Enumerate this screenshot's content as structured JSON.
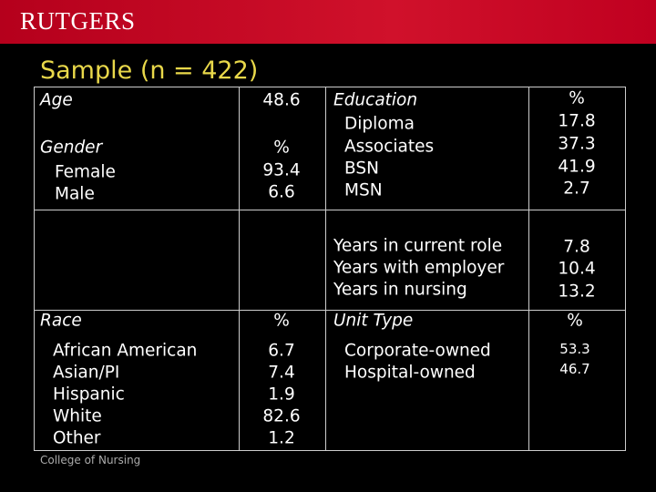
{
  "header": {
    "logo": "RUTGERS",
    "title": "Sample (n = 422)"
  },
  "table": {
    "rows": [
      [
        [
          "Age",
          "Gender",
          "Female",
          "Male"
        ],
        [
          "48.6",
          "%",
          "93.4",
          "6.6"
        ],
        [
          "Education",
          "Diploma",
          "Associates",
          "BSN",
          "MSN"
        ],
        [
          "%",
          "17.8",
          "37.3",
          "41.9",
          "2.7"
        ]
      ],
      [
        [],
        [],
        [
          "Years in current role",
          "Years with employer",
          "Years in nursing"
        ],
        [
          "7.8",
          "10.4",
          "13.2"
        ]
      ],
      [
        [
          "Race",
          "African American",
          "Asian/PI",
          "Hispanic",
          "White",
          "Other"
        ],
        [
          "%",
          "6.7",
          "7.4",
          "1.9",
          "82.6",
          "1.2"
        ],
        [
          "Unit Type",
          "Corporate-owned",
          "Hospital-owned"
        ],
        [
          "%",
          "53.3",
          "46.7"
        ]
      ]
    ]
  },
  "footer": {
    "text": "College of Nursing"
  }
}
